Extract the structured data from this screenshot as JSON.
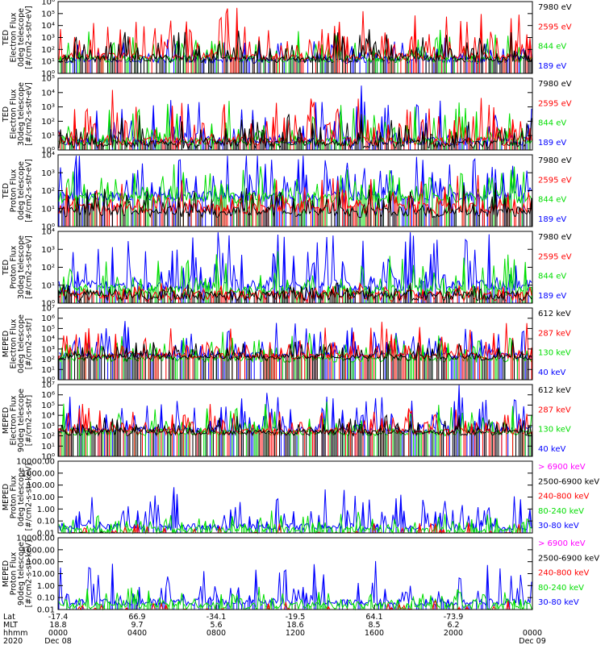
{
  "chart_data": [
    {
      "type": "line",
      "panel": "ted-electron-0deg",
      "ylabel": [
        "TED",
        "Electron Flux",
        "0deg telescope",
        "[#/cm2-s-str-eV]"
      ],
      "scale": "log",
      "yticks": [
        "10⁰",
        "10¹",
        "10²",
        "10³",
        "10⁴",
        "10⁵",
        "10⁶"
      ],
      "ylim": [
        1,
        1000000
      ],
      "series": [
        {
          "name": "7980 eV",
          "color": "#000000",
          "base": 1.2,
          "spikes": 2.2
        },
        {
          "name": "2595 eV",
          "color": "#ff0000",
          "base": 1.4,
          "spikes": 3.6
        },
        {
          "name": "844 eV",
          "color": "#00dd00",
          "base": 1.2,
          "spikes": 2.0
        },
        {
          "name": "189 eV",
          "color": "#0000ff",
          "base": 1.1,
          "spikes": 1.8
        }
      ],
      "draw_order": [
        "189 eV",
        "844 eV",
        "2595 eV",
        "7980 eV"
      ]
    },
    {
      "type": "line",
      "panel": "ted-electron-30deg",
      "ylabel": [
        "TED",
        "Electron Flux",
        "30deg telescope",
        "[#/cm2-s-str-eV]"
      ],
      "scale": "log",
      "yticks": [
        "10⁰",
        "10¹",
        "10²",
        "10³",
        "10⁴",
        "10⁵"
      ],
      "ylim": [
        1,
        100000
      ],
      "series": [
        {
          "name": "7980 eV",
          "color": "#000000",
          "base": 0.4,
          "spikes": 2.0
        },
        {
          "name": "2595 eV",
          "color": "#ff0000",
          "base": 0.6,
          "spikes": 3.2
        },
        {
          "name": "844 eV",
          "color": "#00dd00",
          "base": 0.6,
          "spikes": 2.4
        },
        {
          "name": "189 eV",
          "color": "#0000ff",
          "base": 0.6,
          "spikes": 2.6
        }
      ],
      "draw_order": [
        "189 eV",
        "844 eV",
        "2595 eV",
        "7980 eV"
      ]
    },
    {
      "type": "line",
      "panel": "ted-proton-0deg",
      "ylabel": [
        "TED",
        "Proton Flux",
        "0deg telescope",
        "[#/cm2-s-str-eV]"
      ],
      "scale": "log",
      "yticks": [
        "10⁰",
        "10¹",
        "10²",
        "10³",
        "10⁴"
      ],
      "ylim": [
        1,
        10000
      ],
      "series": [
        {
          "name": "7980 eV",
          "color": "#000000",
          "base": 0.8,
          "spikes": 1.4
        },
        {
          "name": "2595 eV",
          "color": "#ff0000",
          "base": 1.0,
          "spikes": 1.4
        },
        {
          "name": "844 eV",
          "color": "#00dd00",
          "base": 1.6,
          "spikes": 1.6
        },
        {
          "name": "189 eV",
          "color": "#0000ff",
          "base": 1.7,
          "spikes": 2.6
        }
      ],
      "draw_order": [
        "189 eV",
        "844 eV",
        "2595 eV",
        "7980 eV"
      ]
    },
    {
      "type": "line",
      "panel": "ted-proton-30deg",
      "ylabel": [
        "TED",
        "Proton Flux",
        "30deg telescope",
        "[#/cm2-s-str-eV]"
      ],
      "scale": "log",
      "yticks": [
        "10⁰",
        "10¹",
        "10²",
        "10³",
        "10⁴"
      ],
      "ylim": [
        1,
        10000
      ],
      "series": [
        {
          "name": "7980 eV",
          "color": "#000000",
          "base": 0.4,
          "spikes": 0.6
        },
        {
          "name": "2595 eV",
          "color": "#ff0000",
          "base": 0.4,
          "spikes": 0.6
        },
        {
          "name": "844 eV",
          "color": "#00dd00",
          "base": 0.7,
          "spikes": 1.8
        },
        {
          "name": "189 eV",
          "color": "#0000ff",
          "base": 1.0,
          "spikes": 2.6
        }
      ],
      "draw_order": [
        "189 eV",
        "844 eV",
        "2595 eV",
        "7980 eV"
      ]
    },
    {
      "type": "line",
      "panel": "meped-electron-0deg",
      "ylabel": [
        "MEPED",
        "Electron Flux",
        "0deg telescope",
        "[#/cm2-s-str]"
      ],
      "scale": "log",
      "yticks": [
        "10⁰",
        "10¹",
        "10²",
        "10³",
        "10⁴",
        "10⁵",
        "10⁶",
        "10⁷"
      ],
      "ylim": [
        1,
        10000000
      ],
      "series": [
        {
          "name": "612 keV",
          "color": "#000000",
          "base": 2.2,
          "spikes": 1.6
        },
        {
          "name": "287 keV",
          "color": "#ff0000",
          "base": 2.3,
          "spikes": 2.6
        },
        {
          "name": "130 keV",
          "color": "#00dd00",
          "base": 2.0,
          "spikes": 2.4
        },
        {
          "name": "40 keV",
          "color": "#0000ff",
          "base": 2.4,
          "spikes": 3.0
        }
      ],
      "draw_order": [
        "40 keV",
        "130 keV",
        "287 keV",
        "612 keV"
      ]
    },
    {
      "type": "line",
      "panel": "meped-electron-90deg",
      "ylabel": [
        "MEPED",
        "Electron Flux",
        "90deg telescope",
        "[#/cm2-s-str]"
      ],
      "scale": "log",
      "yticks": [
        "10⁰",
        "10¹",
        "10²",
        "10³",
        "10⁴",
        "10⁵",
        "10⁶",
        "10⁷"
      ],
      "ylim": [
        1,
        10000000
      ],
      "series": [
        {
          "name": "612 keV",
          "color": "#000000",
          "base": 2.3,
          "spikes": 1.6
        },
        {
          "name": "287 keV",
          "color": "#ff0000",
          "base": 2.4,
          "spikes": 2.4
        },
        {
          "name": "130 keV",
          "color": "#00dd00",
          "base": 2.3,
          "spikes": 2.6
        },
        {
          "name": "40 keV",
          "color": "#0000ff",
          "base": 2.6,
          "spikes": 3.0
        }
      ],
      "draw_order": [
        "40 keV",
        "130 keV",
        "287 keV",
        "612 keV"
      ]
    },
    {
      "type": "line",
      "panel": "meped-proton-0deg",
      "ylabel": [
        "MEPED",
        "Proton Flux",
        "0deg telescope",
        "[#/cm2-s-str-keV]"
      ],
      "scale": "log",
      "yticks": [
        "0.01",
        "0.10",
        "1.00",
        "10.00",
        "100.00",
        "1000.00",
        "10000.00"
      ],
      "ylim": [
        0.01,
        10000
      ],
      "series": [
        {
          "name": "> 6900 keV",
          "color": "#ff00ff",
          "base": -1.6,
          "spikes": 0.8
        },
        {
          "name": "2500-6900 keV",
          "color": "#000000",
          "base": -1.3,
          "spikes": 1.0
        },
        {
          "name": "240-800 keV",
          "color": "#ff0000",
          "base": -0.6,
          "spikes": 1.2
        },
        {
          "name": "80-240 keV",
          "color": "#00dd00",
          "base": 0.2,
          "spikes": 1.4
        },
        {
          "name": "30-80 keV",
          "color": "#0000ff",
          "base": 0.5,
          "spikes": 3.0
        }
      ],
      "draw_order": [
        "30-80 keV",
        "80-240 keV",
        "240-800 keV",
        "2500-6900 keV",
        "> 6900 keV"
      ]
    },
    {
      "type": "line",
      "panel": "meped-proton-90deg",
      "ylabel": [
        "MEPED",
        "Proton Flux",
        "90deg telescope",
        "[#/cm2-s-str-keV]"
      ],
      "scale": "log",
      "yticks": [
        "0.01",
        "0.10",
        "1.00",
        "10.00",
        "100.00",
        "1000.00",
        "10000.00"
      ],
      "ylim": [
        0.01,
        10000
      ],
      "series": [
        {
          "name": "> 6900 keV",
          "color": "#ff00ff",
          "base": -1.6,
          "spikes": 0.8
        },
        {
          "name": "2500-6900 keV",
          "color": "#000000",
          "base": -1.3,
          "spikes": 1.0
        },
        {
          "name": "240-800 keV",
          "color": "#ff0000",
          "base": -0.6,
          "spikes": 1.2
        },
        {
          "name": "80-240 keV",
          "color": "#00dd00",
          "base": 0.3,
          "spikes": 1.4
        },
        {
          "name": "30-80 keV",
          "color": "#0000ff",
          "base": 0.6,
          "spikes": 3.0
        }
      ],
      "draw_order": [
        "30-80 keV",
        "80-240 keV",
        "240-800 keV",
        "2500-6900 keV",
        "> 6900 keV"
      ]
    }
  ],
  "x_axis": {
    "row_labels": [
      "Lat",
      "MLT",
      "hhmm",
      "2020"
    ],
    "columns": [
      {
        "lat": "-17.4",
        "mlt": "18.8",
        "hhmm": "0000",
        "date": "Dec 08"
      },
      {
        "lat": "66.9",
        "mlt": "9.7",
        "hhmm": "0400",
        "date": ""
      },
      {
        "lat": "-34.1",
        "mlt": "5.6",
        "hhmm": "0800",
        "date": ""
      },
      {
        "lat": "-19.5",
        "mlt": "18.6",
        "hhmm": "1200",
        "date": ""
      },
      {
        "lat": "64.1",
        "mlt": "8.5",
        "hhmm": "1600",
        "date": ""
      },
      {
        "lat": "-73.9",
        "mlt": "6.2",
        "hhmm": "2000",
        "date": ""
      },
      {
        "lat": "",
        "mlt": "",
        "hhmm": "0000",
        "date": "Dec 09"
      }
    ]
  }
}
